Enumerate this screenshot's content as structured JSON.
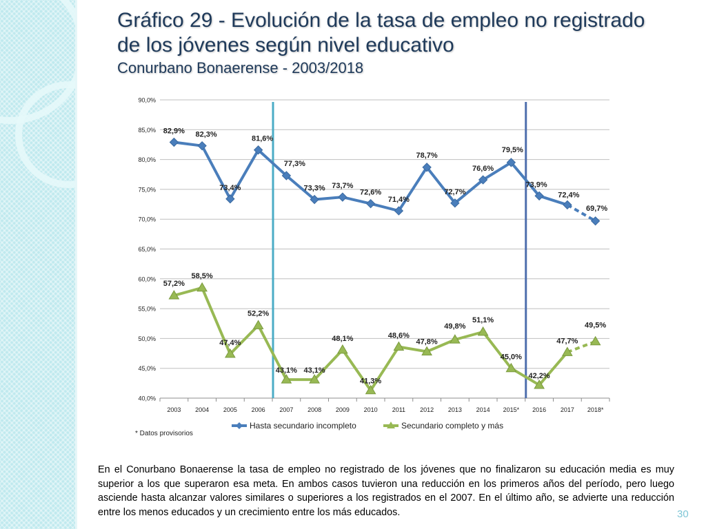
{
  "slide": {
    "title_line1": "Gráfico 29 - Evolución de la tasa de empleo no registrado",
    "title_line2": "de los jóvenes según nivel educativo",
    "subtitle": "Conurbano Bonaerense - 2003/2018",
    "paragraph": "En el Conurbano Bonaerense la tasa de empleo no registrado de los jóvenes que no finalizaron su educación media es muy superior a los que superaron esa meta. En ambos casos tuvieron una reducción en los primeros años del período, pero luego asciende hasta alcanzar valores similares o superiores a los registrados en el 2007. En el último año, se advierte una reducción entre los menos educados y un crecimiento entre los más educados.",
    "page_number": "30"
  },
  "chart_data": {
    "type": "line",
    "title": "",
    "xlabel": "",
    "ylabel": "",
    "categories": [
      "2003",
      "2004",
      "2005",
      "2006",
      "2007",
      "2008",
      "2009",
      "2010",
      "2011",
      "2012",
      "2013",
      "2014",
      "2015*",
      "2016",
      "2017",
      "2018*"
    ],
    "ylim": [
      40,
      90
    ],
    "yticks": [
      40,
      45,
      50,
      55,
      60,
      65,
      70,
      75,
      80,
      85,
      90
    ],
    "ytick_labels": [
      "40,0%",
      "45,0%",
      "50,0%",
      "55,0%",
      "60,0%",
      "65,0%",
      "70,0%",
      "75,0%",
      "80,0%",
      "85,0%",
      "90,0%"
    ],
    "grid": true,
    "legend_position": "bottom",
    "series": [
      {
        "name": "Hasta secundario incompleto",
        "color": "#4a7ebb",
        "marker": "diamond",
        "values": [
          82.9,
          82.3,
          73.4,
          81.6,
          77.3,
          73.3,
          73.7,
          72.6,
          71.4,
          78.7,
          72.7,
          76.6,
          79.5,
          73.9,
          72.4,
          69.7
        ],
        "labels": [
          "82,9%",
          "82,3%",
          "73,4%",
          "81,6%",
          "77,3%",
          "73,3%",
          "73,7%",
          "72,6%",
          "71,4%",
          "78,7%",
          "72,7%",
          "76,6%",
          "79,5%",
          "73,9%",
          "72,4%",
          "69,7%"
        ]
      },
      {
        "name": "Secundario completo y más",
        "color": "#98b954",
        "marker": "triangle",
        "values": [
          57.2,
          58.5,
          47.4,
          52.2,
          43.1,
          43.1,
          48.1,
          41.3,
          48.6,
          47.8,
          49.8,
          51.1,
          45.0,
          42.2,
          47.7,
          49.5
        ],
        "labels": [
          "57,2%",
          "58,5%",
          "47,4%",
          "52,2%",
          "43,1%",
          "43,1%",
          "48,1%",
          "41,3%",
          "48,6%",
          "47,8%",
          "49,8%",
          "51,1%",
          "45,0%",
          "42,2%",
          "47,7%",
          "49,5%"
        ]
      }
    ],
    "provisional_from_index": 14,
    "reference_lines": [
      {
        "after_category": "2006",
        "color": "#4bacc6"
      },
      {
        "after_category": "2015*",
        "color": "#4f6fad"
      }
    ],
    "footnote": "* Datos provisorios"
  }
}
